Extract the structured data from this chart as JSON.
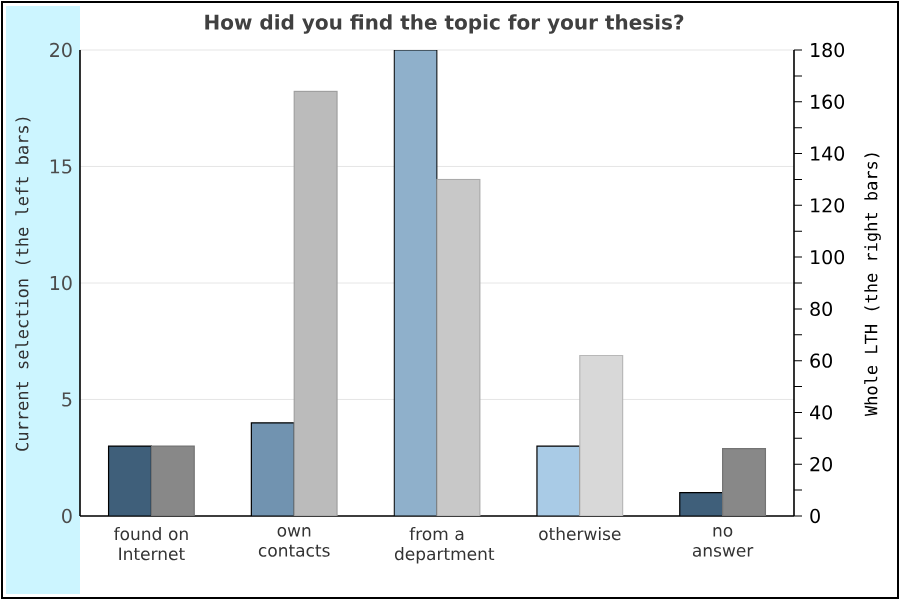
{
  "chart_data": {
    "type": "bar",
    "title": "How did you find the topic for your thesis?",
    "ylabel": "Current selection (the left bars)",
    "y2label": "Whole LTH (the right bars)",
    "categories": [
      "found on Internet",
      "own contacts",
      "from a department",
      "otherwise",
      "no answer"
    ],
    "series": [
      {
        "values": [
          3,
          4,
          20,
          3,
          1
        ],
        "colors": [
          "#3f5f7a",
          "#7193b0",
          "#8fb0cb",
          "#a9cbe6",
          "#3f5f7a"
        ]
      },
      {
        "axis": "y2",
        "values": [
          27,
          164,
          130,
          62,
          26
        ],
        "colors": [
          "#888888",
          "#bbbbbb",
          "#c8c8c8",
          "#d8d8d8",
          "#888888"
        ]
      }
    ],
    "ylim": [
      0,
      20
    ],
    "yticks": [
      0,
      5,
      10,
      15,
      20
    ],
    "y2lim": [
      0,
      180
    ],
    "y2ticks": [
      0,
      {
        "value": 10,
        "label": null
      },
      20,
      {
        "value": 30,
        "label": null
      },
      40,
      {
        "value": 50,
        "label": null
      },
      60,
      {
        "value": 70,
        "label": null
      },
      80,
      {
        "value": 90,
        "label": null
      },
      100,
      {
        "value": 110,
        "label": null
      },
      120,
      {
        "value": 130,
        "label": null
      },
      140,
      {
        "value": 150,
        "label": null
      },
      160,
      {
        "value": 170,
        "label": null
      },
      180
    ],
    "grid": "y"
  }
}
